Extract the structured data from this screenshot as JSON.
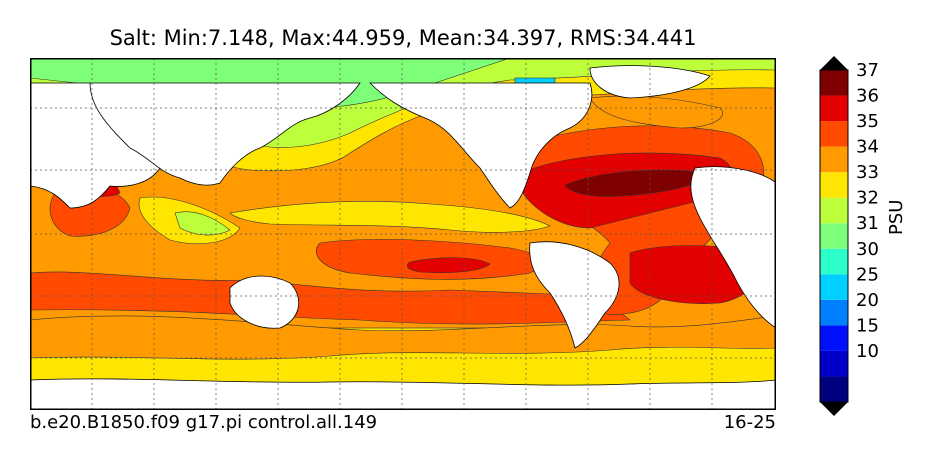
{
  "title": "Salt: Min:7.148, Max:44.959, Mean:34.397, RMS:34.441",
  "footer": {
    "case_name": "b.e20.B1850.f09 g17.pi control.all.149",
    "years": "16-25"
  },
  "colorbar": {
    "unit": "PSU",
    "levels": [
      {
        "label": "",
        "color": "#00007f"
      },
      {
        "label": "10",
        "color": "#0000c8"
      },
      {
        "label": "15",
        "color": "#0010ff"
      },
      {
        "label": "20",
        "color": "#0080ff"
      },
      {
        "label": "25",
        "color": "#00d0ff"
      },
      {
        "label": "30",
        "color": "#2cffca"
      },
      {
        "label": "31",
        "color": "#7dff7a"
      },
      {
        "label": "32",
        "color": "#bdff3a"
      },
      {
        "label": "33",
        "color": "#ffe600"
      },
      {
        "label": "34",
        "color": "#ff9a00"
      },
      {
        "label": "35",
        "color": "#ff4a00"
      },
      {
        "label": "36",
        "color": "#e30000"
      },
      {
        "label": "37",
        "color": "#7f0000"
      }
    ]
  }
}
